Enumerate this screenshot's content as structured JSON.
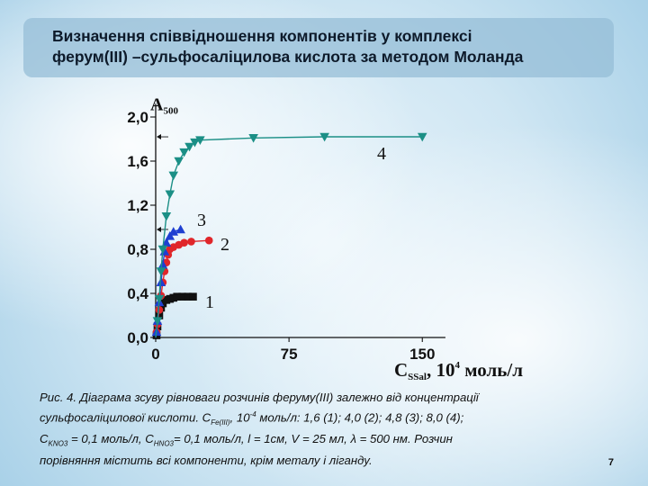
{
  "header": {
    "title_line1": "Визначення співвідношення компонентів у комплексі",
    "title_line2": "ферум(III) –сульфосаліцилова кислота за методом Моланда"
  },
  "chart_data": {
    "type": "scatter",
    "ylabel_main": "A",
    "ylabel_sub": "500",
    "xlabel_main": "C",
    "xlabel_sub": "SSal",
    "xlabel_rest": ", 10",
    "xlabel_sup": "4",
    "xlabel_unit": " моль/л",
    "xlim": [
      0,
      160
    ],
    "ylim": [
      0,
      2.0
    ],
    "xticks": [
      0,
      75,
      150
    ],
    "xtick_labels": [
      "0",
      "75",
      "150"
    ],
    "yticks": [
      0,
      0.4,
      0.8,
      1.2,
      1.6,
      2.0
    ],
    "ytick_labels": [
      "0,0",
      "0,4",
      "0,8",
      "1,2",
      "1,6",
      "2,0"
    ],
    "series": [
      {
        "name": "1",
        "color": "#111111",
        "marker": "square",
        "x": [
          0.5,
          1,
          2,
          3,
          4,
          6,
          8,
          10,
          12,
          15,
          18,
          21
        ],
        "y": [
          0.02,
          0.1,
          0.2,
          0.27,
          0.31,
          0.34,
          0.35,
          0.36,
          0.37,
          0.37,
          0.37,
          0.37
        ]
      },
      {
        "name": "2",
        "color": "#e0262a",
        "marker": "circle",
        "x": [
          0.5,
          1,
          2,
          3,
          4,
          5,
          6,
          7,
          8,
          10,
          13,
          16,
          20,
          30
        ],
        "y": [
          0.05,
          0.12,
          0.25,
          0.38,
          0.5,
          0.6,
          0.68,
          0.75,
          0.8,
          0.82,
          0.84,
          0.86,
          0.87,
          0.88
        ]
      },
      {
        "name": "3",
        "color": "#1f3fd1",
        "marker": "triangle-up",
        "x": [
          0.5,
          1,
          2,
          3,
          4,
          5,
          6,
          8,
          10,
          14
        ],
        "y": [
          0.05,
          0.15,
          0.32,
          0.5,
          0.66,
          0.78,
          0.86,
          0.92,
          0.96,
          0.98
        ]
      },
      {
        "name": "4",
        "color": "#1b8f86",
        "marker": "triangle-down",
        "x": [
          1,
          2,
          3,
          4,
          6,
          8,
          10,
          13,
          16,
          19,
          22,
          25,
          55,
          95,
          150
        ],
        "y": [
          0.15,
          0.35,
          0.6,
          0.8,
          1.1,
          1.3,
          1.47,
          1.6,
          1.68,
          1.73,
          1.77,
          1.79,
          1.81,
          1.82,
          1.82
        ]
      }
    ]
  },
  "caption": {
    "line1": "Рис. 4. Діаграма зсуву рівноваги розчинів феруму(III) залежно від концентрації",
    "line2_a": "сульфосаліцилової кислоти. C",
    "line2_sub": "Fe(III)",
    "line2_b": ", 10",
    "line2_sup": "-4",
    "line2_c": " моль/л: 1,6 (1); 4,0 (2); 4,8 (3); 8,0 (4);",
    "line3_a": "C",
    "line3_sub1": "KNO3",
    "line3_b": " = 0,1 моль/л, C",
    "line3_sub2": "HNO3",
    "line3_c": "= 0,1 моль/л, l = 1см, V = 25 мл, λ = 500 нм. Розчин",
    "line4": "порівняння містить всі компоненти, крім металу і ліганду."
  },
  "page_number": "7"
}
